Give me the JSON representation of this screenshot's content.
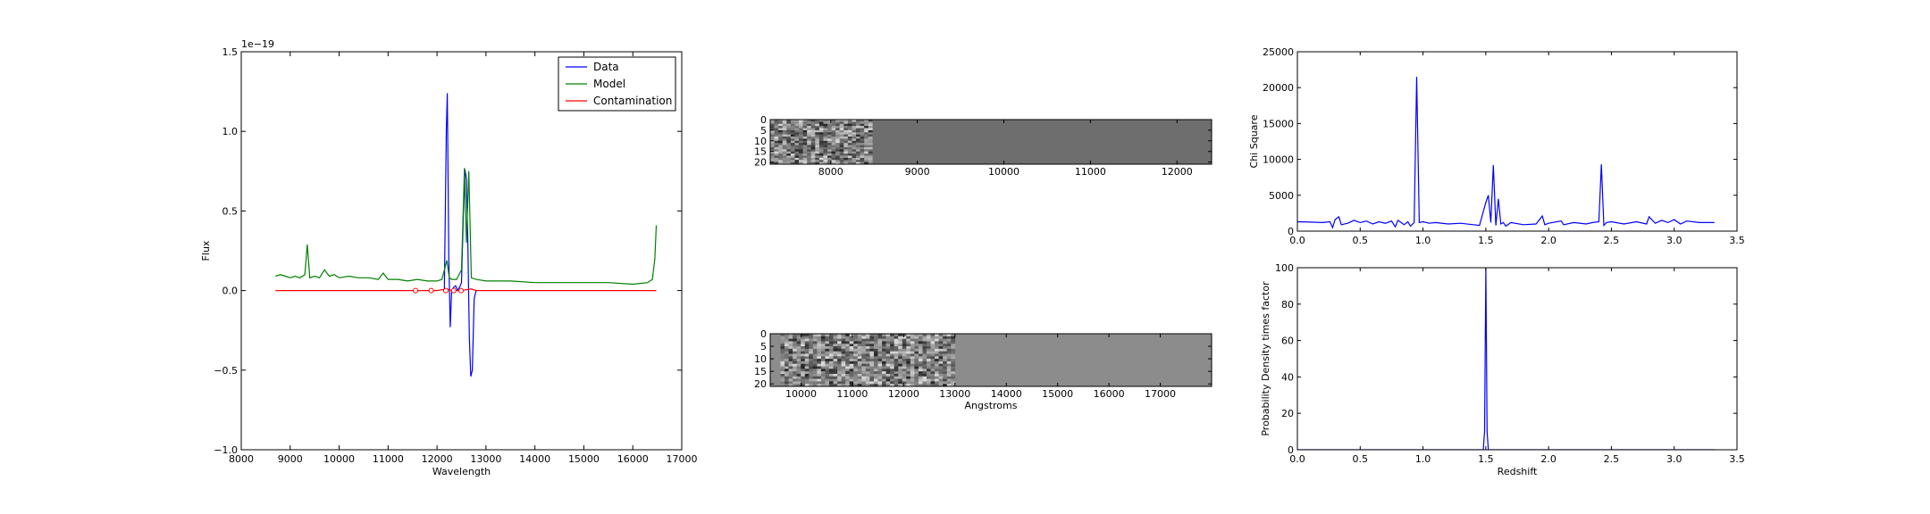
{
  "chart_data": [
    {
      "type": "line",
      "xlabel": "Wavelength",
      "ylabel": "Flux",
      "offset_text": "1e−19",
      "xlim": [
        8000,
        17000
      ],
      "ylim": [
        -1.0,
        1.5
      ],
      "xticks": [
        8000,
        9000,
        10000,
        11000,
        12000,
        13000,
        14000,
        15000,
        16000,
        17000
      ],
      "yticks": [
        -1.0,
        -0.5,
        0.0,
        0.5,
        1.0,
        1.5
      ],
      "ytick_labels": [
        "−1.0",
        "−0.5",
        "0.0",
        "0.5",
        "1.0",
        "1.5"
      ],
      "legend_position": "top-right",
      "series": [
        {
          "name": "Data",
          "color": "#0000ff",
          "x": [
            12150,
            12190,
            12210,
            12240,
            12270,
            12300,
            12340,
            12380,
            12420,
            12460,
            12500,
            12540,
            12570,
            12600,
            12630,
            12660,
            12690,
            12720,
            12760,
            12800
          ],
          "y": [
            0.0,
            1.0,
            1.24,
            0.2,
            -0.23,
            0.0,
            0.02,
            0.03,
            0.0,
            0.02,
            0.05,
            0.5,
            0.76,
            0.7,
            0.3,
            -0.3,
            -0.54,
            -0.5,
            -0.05,
            0.0
          ]
        },
        {
          "name": "Model",
          "color": "#008000",
          "x": [
            8700,
            8800,
            8900,
            9000,
            9100,
            9200,
            9300,
            9350,
            9400,
            9500,
            9600,
            9700,
            9800,
            9900,
            10000,
            10200,
            10400,
            10600,
            10800,
            10900,
            11000,
            11200,
            11400,
            11600,
            11800,
            12000,
            12100,
            12200,
            12250,
            12300,
            12400,
            12500,
            12560,
            12600,
            12650,
            12700,
            12800,
            13000,
            13500,
            14000,
            14500,
            15000,
            15500,
            16000,
            16300,
            16400,
            16450,
            16480
          ],
          "y": [
            0.09,
            0.1,
            0.09,
            0.08,
            0.09,
            0.08,
            0.1,
            0.29,
            0.08,
            0.09,
            0.08,
            0.13,
            0.09,
            0.1,
            0.08,
            0.09,
            0.08,
            0.08,
            0.07,
            0.11,
            0.07,
            0.07,
            0.06,
            0.07,
            0.06,
            0.06,
            0.07,
            0.19,
            0.08,
            0.07,
            0.07,
            0.13,
            0.77,
            0.3,
            0.75,
            0.08,
            0.07,
            0.06,
            0.06,
            0.05,
            0.05,
            0.05,
            0.05,
            0.04,
            0.05,
            0.07,
            0.2,
            0.41
          ]
        },
        {
          "name": "Contamination",
          "color": "#ff0000",
          "x": [
            8700,
            11600,
            11800,
            12000,
            12200,
            12300,
            12400,
            12500,
            12700,
            12800,
            13000,
            16480
          ],
          "y": [
            0.0,
            0.0,
            0.0,
            0.0,
            0.01,
            0.0,
            0.0,
            0.0,
            0.01,
            0.0,
            0.0,
            0.0
          ]
        }
      ],
      "markers": {
        "color": "#ff0000",
        "x": [
          11560,
          11880,
          12180,
          12340,
          12490
        ],
        "y": [
          0.0,
          0.0,
          0.0,
          0.0,
          0.0
        ]
      }
    },
    {
      "type": "heatmap",
      "xlim": [
        7300,
        12400
      ],
      "xticks": [
        8000,
        9000,
        10000,
        11000,
        12000
      ],
      "yticks": [
        0,
        5,
        10,
        15,
        20
      ],
      "ylim": [
        0,
        21
      ],
      "data_extent": [
        7300,
        8480
      ],
      "background_color": "#6e6e6e",
      "colormap": "gray"
    },
    {
      "type": "heatmap",
      "xlabel": "Angstroms",
      "xlim": [
        9400,
        18000
      ],
      "xticks": [
        10000,
        11000,
        12000,
        13000,
        14000,
        15000,
        16000,
        17000
      ],
      "yticks": [
        0,
        5,
        10,
        15,
        20
      ],
      "ylim": [
        0,
        21
      ],
      "data_extent": [
        9600,
        13000
      ],
      "background_color": "#8c8c8c",
      "colormap": "gray"
    },
    {
      "type": "line",
      "ylabel": "Chi Square",
      "xlim": [
        0.0,
        3.5
      ],
      "ylim": [
        0,
        25000
      ],
      "xticks": [
        0.0,
        0.5,
        1.0,
        1.5,
        2.0,
        2.5,
        3.0,
        3.5
      ],
      "yticks": [
        0,
        5000,
        10000,
        15000,
        20000,
        25000
      ],
      "series": [
        {
          "color": "#0000ff",
          "x": [
            0.0,
            0.1,
            0.2,
            0.26,
            0.28,
            0.3,
            0.33,
            0.35,
            0.4,
            0.45,
            0.5,
            0.55,
            0.6,
            0.65,
            0.7,
            0.75,
            0.78,
            0.8,
            0.85,
            0.88,
            0.9,
            0.93,
            0.95,
            0.97,
            1.0,
            1.05,
            1.1,
            1.2,
            1.3,
            1.4,
            1.45,
            1.5,
            1.52,
            1.54,
            1.56,
            1.58,
            1.6,
            1.62,
            1.64,
            1.66,
            1.7,
            1.8,
            1.9,
            1.95,
            1.97,
            2.0,
            2.1,
            2.12,
            2.2,
            2.3,
            2.35,
            2.4,
            2.42,
            2.44,
            2.46,
            2.5,
            2.6,
            2.7,
            2.78,
            2.8,
            2.85,
            2.9,
            2.95,
            3.0,
            3.05,
            3.1,
            3.2,
            3.32
          ],
          "y": [
            1300,
            1250,
            1200,
            1300,
            500,
            1600,
            2000,
            900,
            1100,
            1500,
            1200,
            1400,
            1000,
            1300,
            1100,
            1400,
            600,
            1500,
            900,
            1300,
            700,
            1200,
            21500,
            1200,
            1300,
            1100,
            1200,
            1000,
            1100,
            900,
            800,
            4000,
            5000,
            1200,
            9200,
            800,
            4500,
            1000,
            1200,
            700,
            1200,
            900,
            1000,
            2100,
            900,
            1100,
            1400,
            900,
            1200,
            1000,
            1200,
            1300,
            9300,
            800,
            1200,
            1300,
            1000,
            1300,
            1000,
            2000,
            1100,
            1500,
            1200,
            1600,
            1000,
            1400,
            1200,
            1200
          ]
        }
      ]
    },
    {
      "type": "line",
      "xlabel": "Redshift",
      "ylabel": "Probability Density times factor",
      "xlim": [
        0.0,
        3.5
      ],
      "ylim": [
        0,
        100
      ],
      "xticks": [
        0.0,
        0.5,
        1.0,
        1.5,
        2.0,
        2.5,
        3.0,
        3.5
      ],
      "yticks": [
        0,
        20,
        40,
        60,
        80,
        100
      ],
      "series": [
        {
          "color": "#0000ff",
          "x": [
            0.0,
            1.48,
            1.49,
            1.5,
            1.51,
            1.52,
            3.32
          ],
          "y": [
            0,
            0,
            10,
            100,
            10,
            0,
            0
          ]
        }
      ]
    }
  ]
}
